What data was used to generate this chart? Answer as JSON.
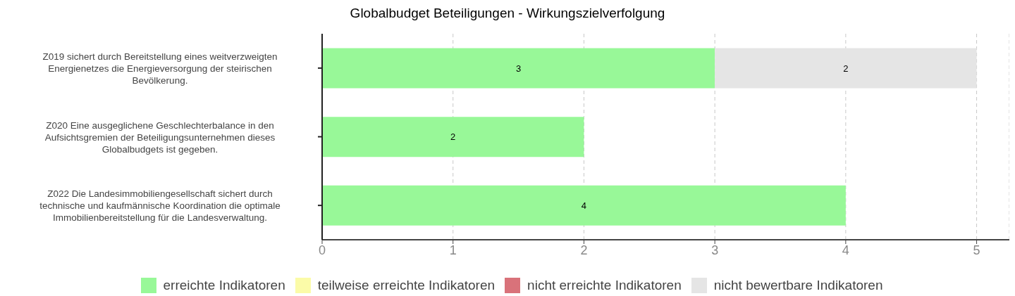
{
  "chart_data": {
    "type": "bar",
    "orientation": "horizontal",
    "stacked": true,
    "title": "Globalbudget Beteiligungen - Wirkungszielverfolgung",
    "categories": [
      "Z019 sichert durch Bereitstellung eines weitverzweigten Energienetzes die Energieversorgung der steirischen Bevölkerung.",
      "Z020 Eine ausgeglichene Geschlechterbalance in den Aufsichtsgremien der Beteiligungsunternehmen dieses Globalbudgets ist gegeben.",
      "Z022 Die Landesimmobiliengesellschaft sichert durch technische und kaufmännische Koordination die optimale Immobilienbereitstellung für die Landesverwaltung."
    ],
    "series": [
      {
        "name": "erreichte Indikatoren",
        "color": "#98f898",
        "values": [
          3,
          2,
          4
        ],
        "value_labels": [
          "3",
          "2",
          "4"
        ]
      },
      {
        "name": "teilweise erreichte Indikatoren",
        "color": "#fbfba8",
        "values": [
          0,
          0,
          0
        ],
        "value_labels": [
          null,
          null,
          null
        ]
      },
      {
        "name": "nicht erreichte Indikatoren",
        "color": "#d9727a",
        "values": [
          0,
          0,
          0
        ],
        "value_labels": [
          null,
          null,
          null
        ]
      },
      {
        "name": "nicht bewertbare Indikatoren",
        "color": "#e5e5e5",
        "values": [
          2,
          0,
          0
        ],
        "value_labels": [
          "2",
          null,
          null
        ]
      }
    ],
    "xlim": [
      0,
      5.25
    ],
    "xticks": [
      0,
      1,
      2,
      3,
      4,
      5
    ],
    "grid": "x",
    "legend": "bottom"
  }
}
